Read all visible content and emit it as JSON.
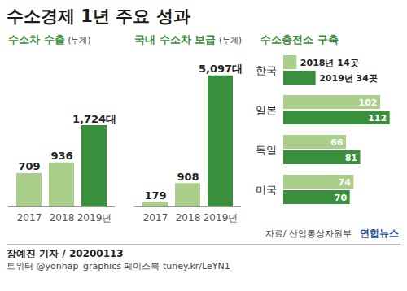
{
  "title": "수소경제 1년 주요 성과",
  "chart_data": [
    {
      "type": "bar",
      "title": "수소차 수출",
      "subtitle": "(누계)",
      "categories": [
        "2017",
        "2018",
        "2019년"
      ],
      "values": [
        709,
        936,
        1724
      ],
      "value_labels": [
        "709",
        "936",
        "1,724대"
      ],
      "colors": [
        "#a9cf8a",
        "#a9cf8a",
        "#3a8f3c"
      ],
      "ylim": [
        0,
        3000
      ],
      "data_labels": true,
      "tick_labels": "x"
    },
    {
      "type": "bar",
      "title": "국내 수소차 보급",
      "subtitle": "(누계)",
      "categories": [
        "2017",
        "2018",
        "2019년"
      ],
      "values": [
        179,
        908,
        5097
      ],
      "value_labels": [
        "179",
        "908",
        "5,097대"
      ],
      "colors": [
        "#a9cf8a",
        "#a9cf8a",
        "#3a8f3c"
      ],
      "ylim": [
        0,
        5500
      ],
      "data_labels": true,
      "tick_labels": "x"
    },
    {
      "type": "bar",
      "orientation": "horizontal",
      "title": "수소충전소 구축",
      "categories": [
        "한국",
        "일본",
        "독일",
        "미국"
      ],
      "series": [
        {
          "name": "2018년",
          "color": "#a9cf8a",
          "values": [
            14,
            102,
            66,
            74
          ],
          "value_labels": [
            "2018년 14곳",
            "102",
            "66",
            "74"
          ]
        },
        {
          "name": "2019년",
          "color": "#3a8f3c",
          "values": [
            34,
            112,
            81,
            70
          ],
          "value_labels": [
            "2019년 34곳",
            "112",
            "81",
            "70"
          ]
        }
      ],
      "xlim": [
        0,
        120
      ],
      "data_labels": true,
      "tick_labels": "y"
    }
  ],
  "source": "자료/ 산업통상자원부",
  "logo": "연합뉴스",
  "credit": "장예진 기자 / 20200113",
  "social": "트위터 @yonhap_graphics 페이스북 tuney.kr/LeYN1"
}
